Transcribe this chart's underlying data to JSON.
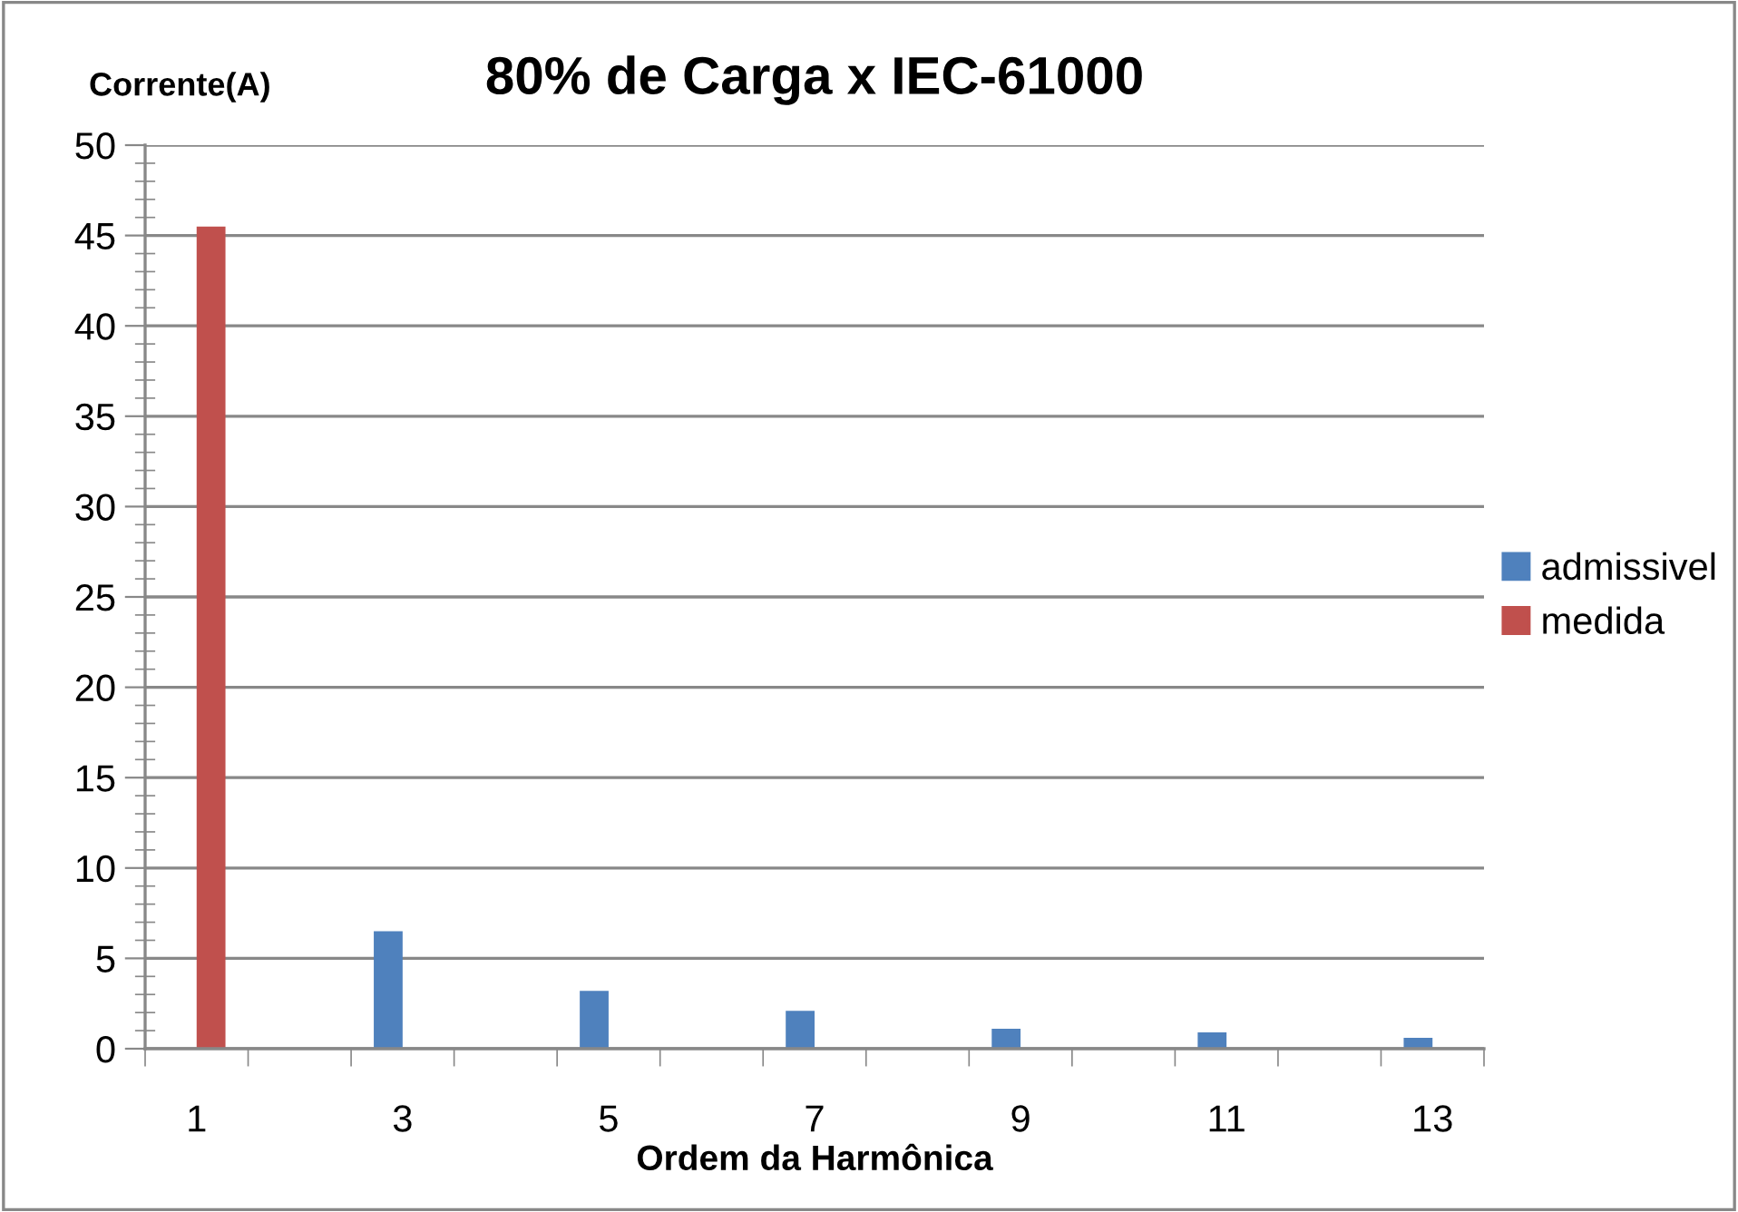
{
  "chart_data": {
    "type": "bar",
    "title": "80% de Carga x IEC-61000",
    "ylabel": "Corrente(A)",
    "xlabel": "Ordem da Harmônica",
    "categories": [
      "1",
      null,
      "3",
      null,
      "5",
      null,
      "7",
      null,
      "9",
      null,
      "11",
      null,
      "13"
    ],
    "series": [
      {
        "name": "admissivel",
        "color": "#4f81bd",
        "values": [
          null,
          null,
          6.5,
          null,
          3.2,
          null,
          2.1,
          null,
          1.1,
          null,
          0.9,
          null,
          0.6
        ]
      },
      {
        "name": "medida",
        "color": "#c0504d",
        "values": [
          45.5,
          null,
          null,
          null,
          null,
          null,
          null,
          null,
          null,
          null,
          null,
          null,
          null
        ]
      }
    ],
    "ylim": [
      0,
      50
    ],
    "yticks": [
      0,
      5,
      10,
      15,
      20,
      25,
      30,
      35,
      40,
      45,
      50
    ],
    "grid": "y",
    "legend": "right"
  }
}
